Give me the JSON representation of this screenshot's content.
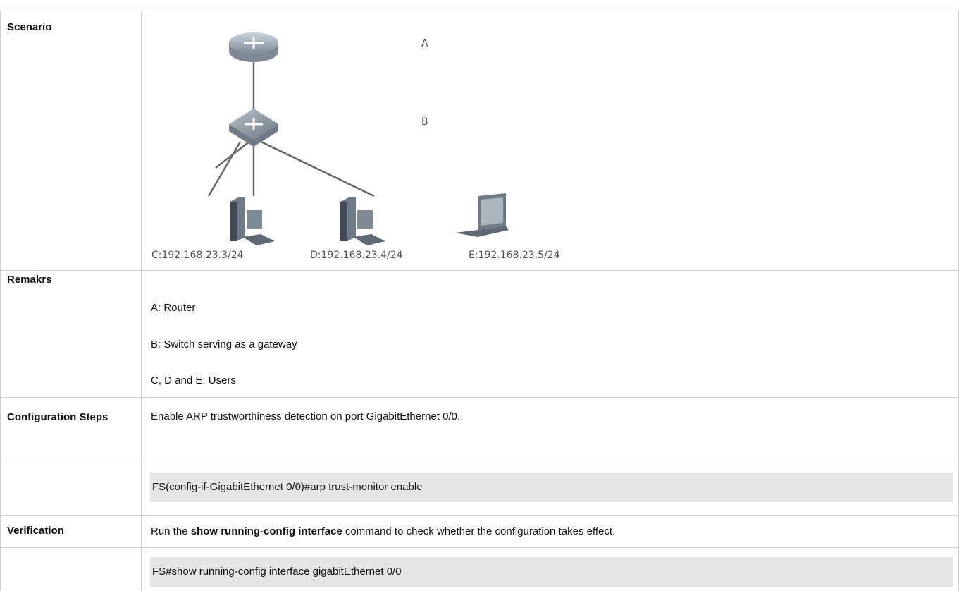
{
  "table": {
    "rows": [
      {
        "label": "Scenario",
        "diagram": {
          "nodes": [
            "A",
            "B"
          ],
          "hosts": [
            "C:192.168.23.3/24",
            "D:192.168.23.4/24",
            "E:192.168.23.5/24"
          ]
        }
      },
      {
        "label": "Remakrs",
        "lines": [
          "A: Router",
          "B: Switch serving as a gateway",
          "C, D and E: Users"
        ]
      },
      {
        "label": "Configuration Steps",
        "text": "Enable ARP trustworthiness detection on port GigabitEthernet 0/0."
      },
      {
        "code": "FS(config-if-GigabitEthernet 0/0)#arp trust-monitor enable"
      },
      {
        "label": "Verification",
        "parts": [
          "Run the ",
          "show running-config interface",
          " command to check whether the configuration takes effect."
        ]
      },
      {
        "code": "FS#show running-config interface gigabitEthernet 0/0"
      }
    ]
  }
}
